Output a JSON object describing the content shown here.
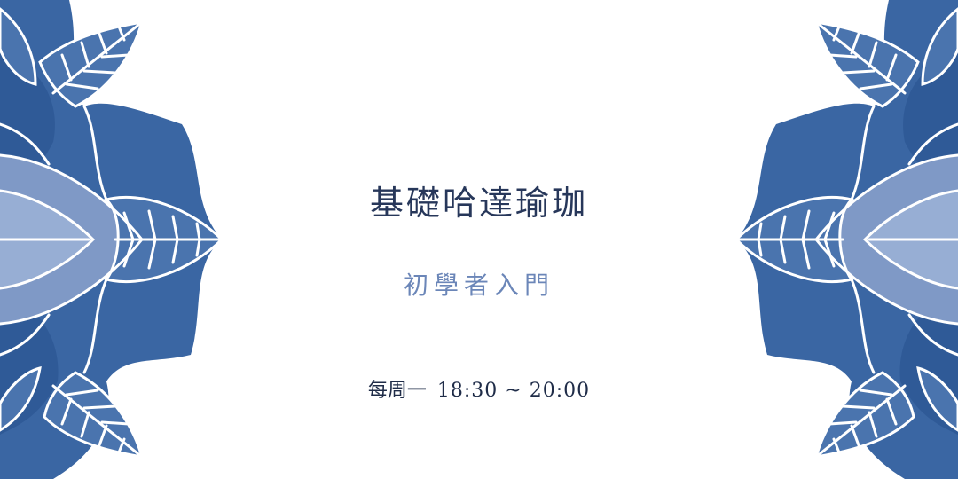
{
  "title": "基礎哈達瑜珈",
  "subtitle": "初學者入門",
  "schedule": {
    "day": "每周一",
    "time": "18:30 ~ 20:00"
  },
  "colors": {
    "background": "#ffffff",
    "title": "#27375a",
    "subtitle": "#6b86b8",
    "schedule": "#1f2c48",
    "leaf_dark": "#2f5a97",
    "leaf_mid": "#4a74ae",
    "leaf_light": "#6f8fc0",
    "leaf_pale": "#8ea7d0",
    "vein": "#ffffff"
  },
  "decoration": {
    "left_icon": "watercolor-lotus-leaves-icon",
    "right_icon": "watercolor-lotus-leaves-icon"
  }
}
